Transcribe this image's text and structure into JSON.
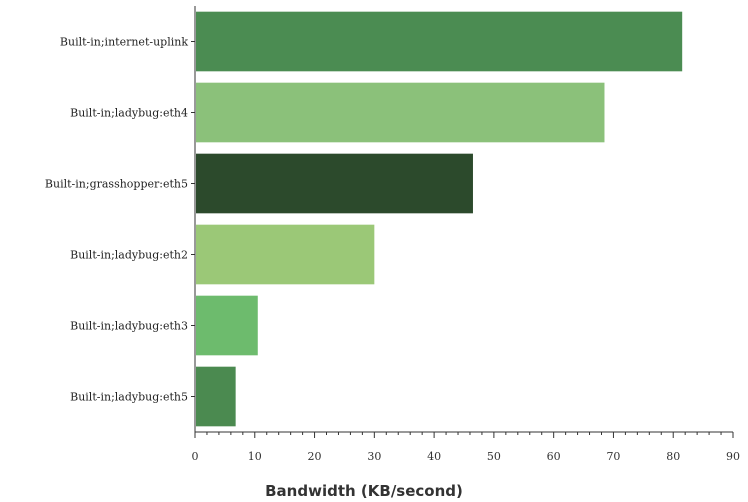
{
  "chart_data": {
    "type": "bar",
    "orientation": "horizontal",
    "categories": [
      "Built-in;internet-uplink",
      "Built-in;ladybug:eth4",
      "Built-in;grasshopper:eth5",
      "Built-in;ladybug:eth2",
      "Built-in;ladybug:eth3",
      "Built-in;ladybug:eth5"
    ],
    "values": [
      81.5,
      68.5,
      46.5,
      30,
      10.5,
      6.8
    ],
    "colors": [
      "#4b8c52",
      "#8bc17a",
      "#2c4a2c",
      "#9bc877",
      "#6dbb6d",
      "#4b8a50"
    ],
    "xlabel": "Bandwidth (KB/second)",
    "ylabel": "",
    "xlim": [
      0,
      90
    ],
    "xticks": [
      0,
      10,
      20,
      30,
      40,
      50,
      60,
      70,
      80,
      90
    ],
    "minor_ticks_per_major": 5,
    "grid": false,
    "legend": "none"
  }
}
